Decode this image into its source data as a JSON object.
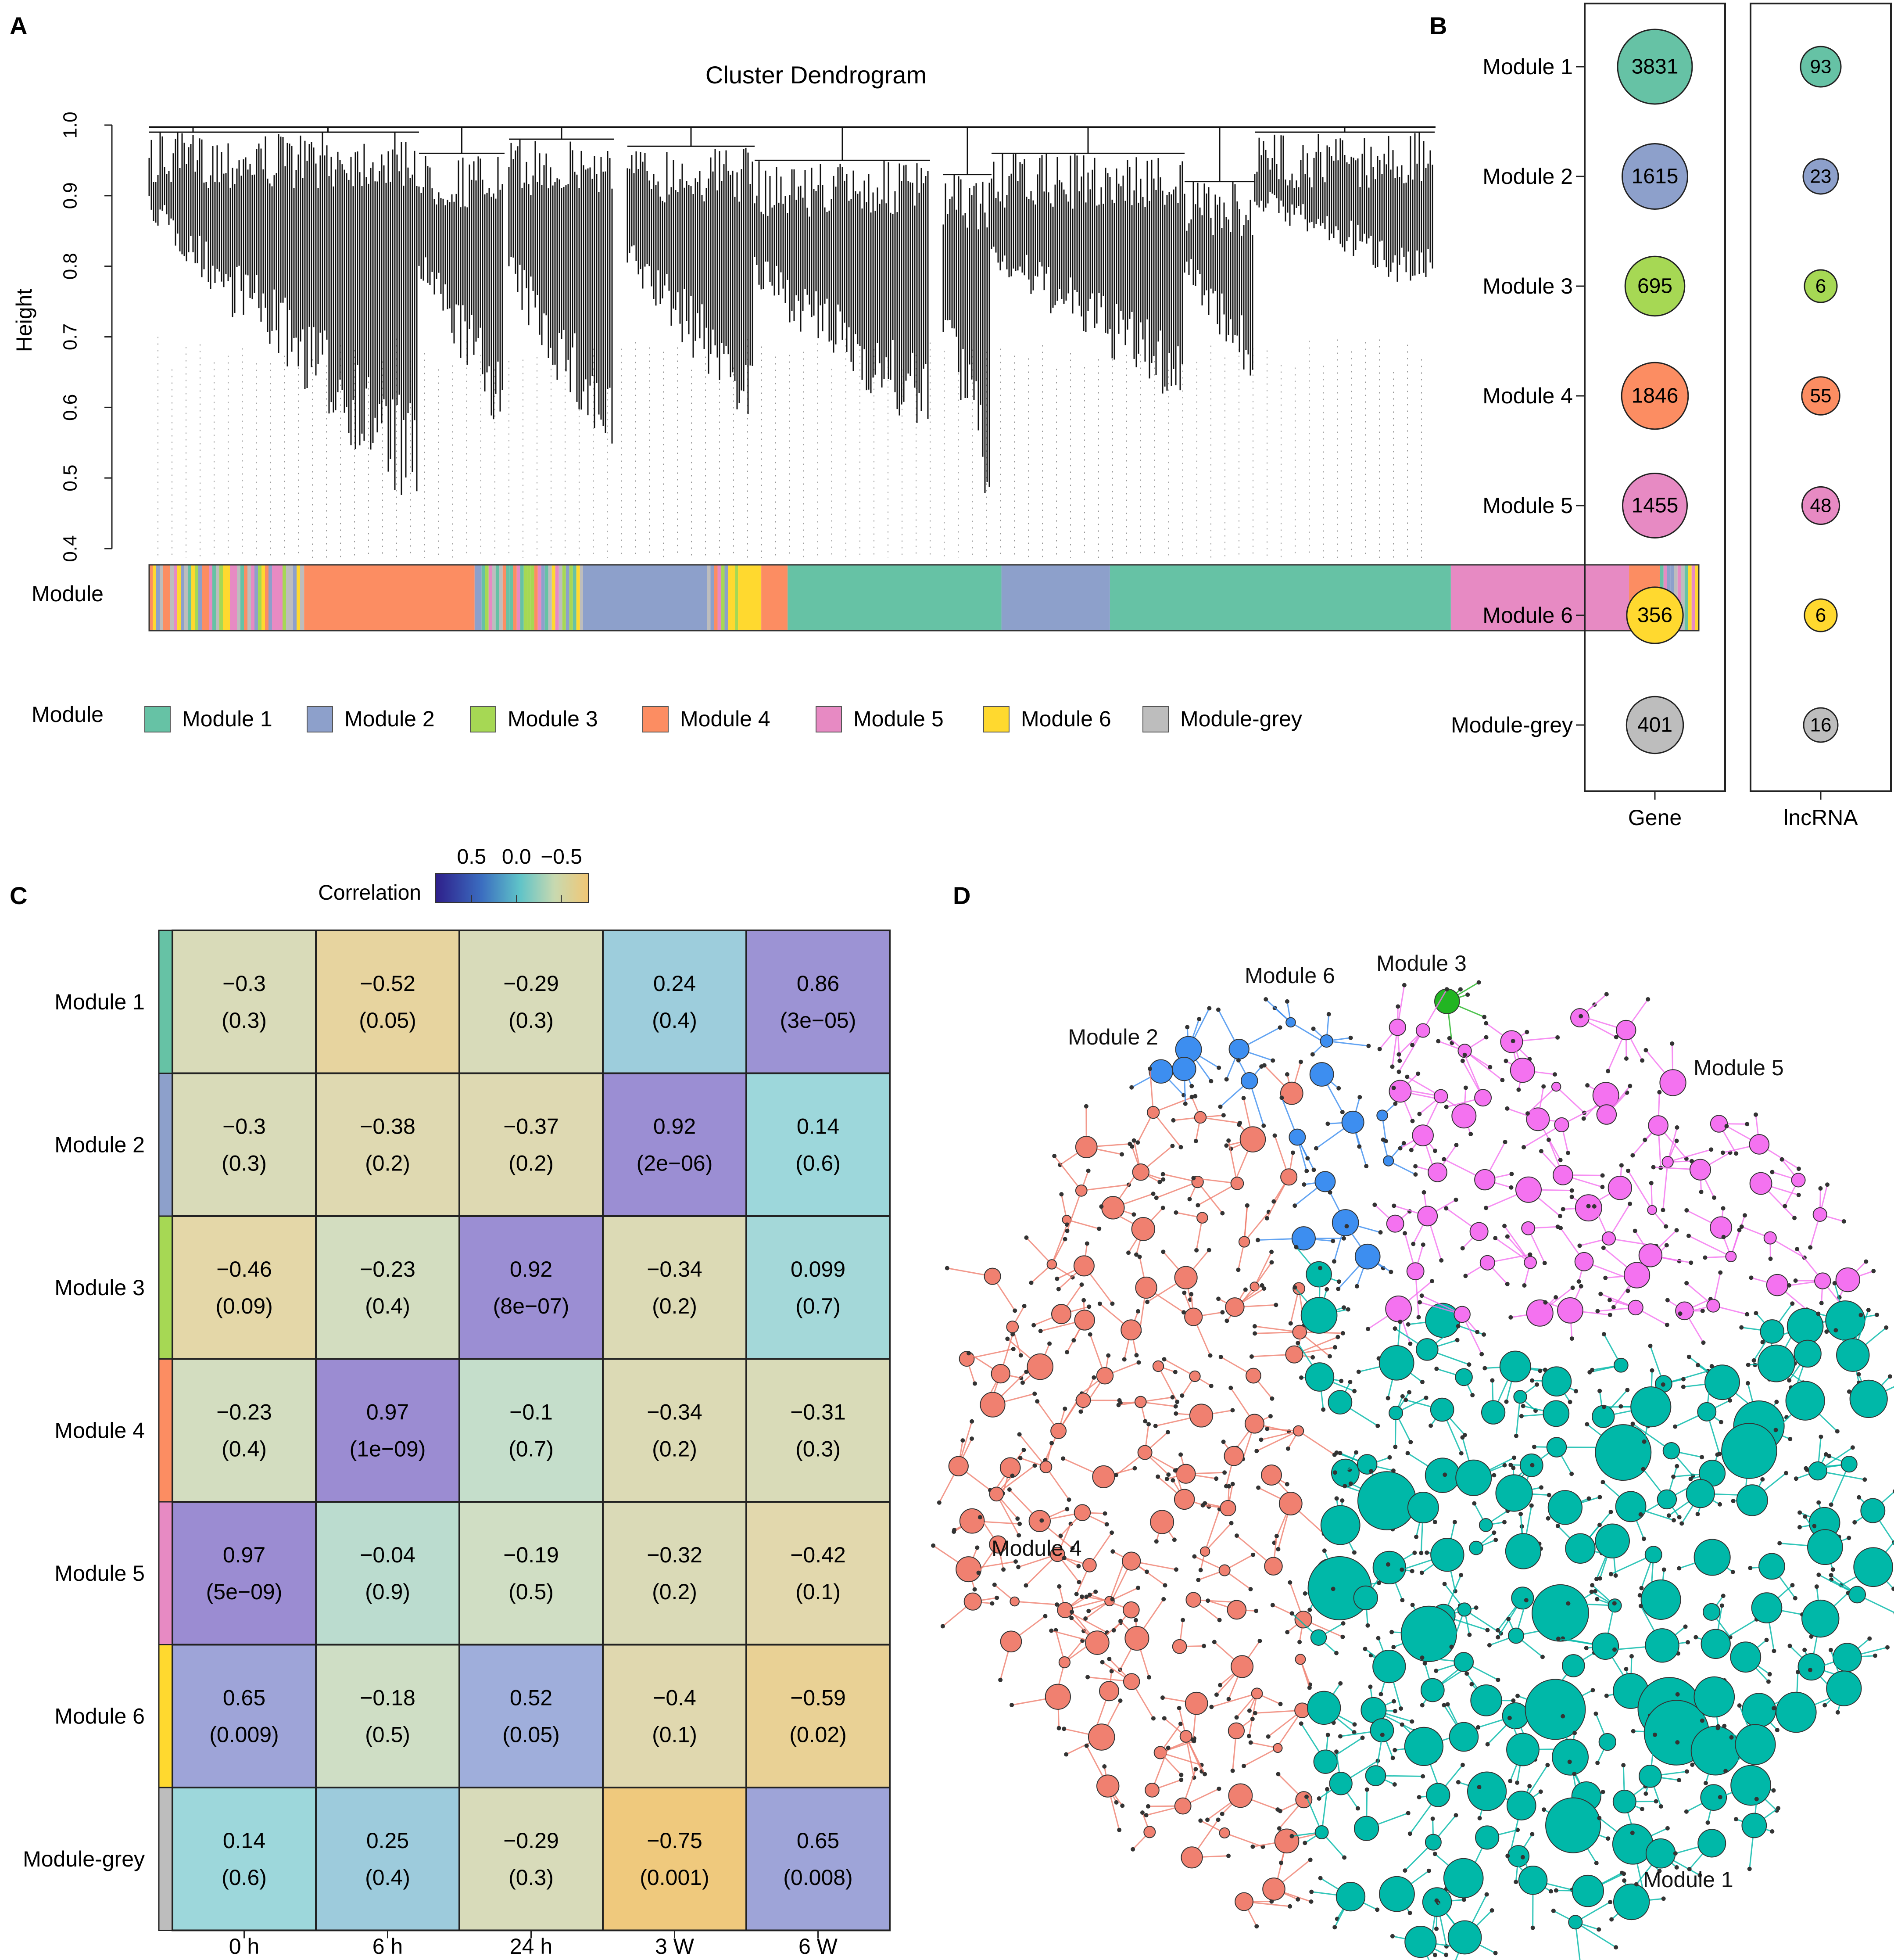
{
  "panel_labels": {
    "a": "A",
    "b": "B",
    "c": "C",
    "d": "D"
  },
  "colors": {
    "m1": "#66c2a5",
    "m2": "#8da0cb",
    "m3": "#a6d854",
    "m4": "#fc8d62",
    "m5": "#e78ac3",
    "m6": "#ffd92f",
    "grey": "#bdbdbd",
    "net_m1": "#00b8a8",
    "net_m2": "#3d8ef0",
    "net_m3": "#22b522",
    "net_m4": "#f08070",
    "net_m5": "#f472f0",
    "net_m6": "#f3e43b"
  },
  "chart_data": [
    {
      "type": "dendrogram",
      "title": "Cluster Dendrogram",
      "ylabel": "Height",
      "ylim": [
        0.4,
        1.0
      ],
      "yticks": [
        "0.4",
        "0.5",
        "0.6",
        "0.7",
        "0.8",
        "0.9",
        "1.0"
      ],
      "module_bar_label": "Module",
      "module_bar": [
        {
          "module": "mixed",
          "start": 0.0,
          "end": 0.1
        },
        {
          "module": "Module 4",
          "start": 0.1,
          "end": 0.21
        },
        {
          "module": "mixed",
          "start": 0.21,
          "end": 0.28
        },
        {
          "module": "Module 2",
          "start": 0.28,
          "end": 0.36
        },
        {
          "module": "mixed",
          "start": 0.36,
          "end": 0.38
        },
        {
          "module": "Module 6",
          "start": 0.38,
          "end": 0.395
        },
        {
          "module": "Module 4",
          "start": 0.395,
          "end": 0.412
        },
        {
          "module": "Module 1",
          "start": 0.412,
          "end": 0.55
        },
        {
          "module": "Module 2",
          "start": 0.55,
          "end": 0.62
        },
        {
          "module": "Module 1",
          "start": 0.62,
          "end": 0.84
        },
        {
          "module": "Module 5",
          "start": 0.84,
          "end": 0.955
        },
        {
          "module": "Module 4",
          "start": 0.955,
          "end": 0.975
        },
        {
          "module": "mixed",
          "start": 0.975,
          "end": 1.0
        }
      ],
      "legend_title": "Module",
      "legend": [
        "Module 1",
        "Module 2",
        "Module 3",
        "Module 4",
        "Module 5",
        "Module 6",
        "Module-grey"
      ]
    },
    {
      "type": "dot-matrix",
      "rows": [
        "Module 1",
        "Module 2",
        "Module 3",
        "Module 4",
        "Module 5",
        "Module 6",
        "Module-grey"
      ],
      "columns": [
        "Gene",
        "lncRNA"
      ],
      "values": {
        "Gene": [
          3831,
          1615,
          695,
          1846,
          1455,
          356,
          401
        ],
        "lncRNA": [
          93,
          23,
          6,
          55,
          48,
          6,
          16
        ]
      }
    },
    {
      "type": "heatmap",
      "title": "Correlation",
      "colorbar_ticks": [
        "0.5",
        "0.0",
        "−0.5"
      ],
      "colorbar_range": [
        0.9,
        -0.8
      ],
      "rows": [
        "Module 1",
        "Module 2",
        "Module 3",
        "Module 4",
        "Module 5",
        "Module 6",
        "Module-grey"
      ],
      "columns": [
        "0 h",
        "6 h",
        "24 h",
        "3 W",
        "6 W"
      ],
      "values": [
        [
          -0.3,
          -0.52,
          -0.29,
          0.24,
          0.86
        ],
        [
          -0.3,
          -0.38,
          -0.37,
          0.92,
          0.14
        ],
        [
          -0.46,
          -0.23,
          0.92,
          -0.34,
          0.099
        ],
        [
          -0.23,
          0.97,
          -0.1,
          -0.34,
          -0.31
        ],
        [
          0.97,
          -0.04,
          -0.19,
          -0.32,
          -0.42
        ],
        [
          0.65,
          -0.18,
          0.52,
          -0.4,
          -0.59
        ],
        [
          0.14,
          0.25,
          -0.29,
          -0.75,
          0.65
        ]
      ],
      "cell_labels": [
        [
          [
            "−0.3",
            "(0.3)"
          ],
          [
            "−0.52",
            "(0.05)"
          ],
          [
            "−0.29",
            "(0.3)"
          ],
          [
            "0.24",
            "(0.4)"
          ],
          [
            "0.86",
            "(3e−05)"
          ]
        ],
        [
          [
            "−0.3",
            "(0.3)"
          ],
          [
            "−0.38",
            "(0.2)"
          ],
          [
            "−0.37",
            "(0.2)"
          ],
          [
            "0.92",
            "(2e−06)"
          ],
          [
            "0.14",
            "(0.6)"
          ]
        ],
        [
          [
            "−0.46",
            "(0.09)"
          ],
          [
            "−0.23",
            "(0.4)"
          ],
          [
            "0.92",
            "(8e−07)"
          ],
          [
            "−0.34",
            "(0.2)"
          ],
          [
            "0.099",
            "(0.7)"
          ]
        ],
        [
          [
            "−0.23",
            "(0.4)"
          ],
          [
            "0.97",
            "(1e−09)"
          ],
          [
            "−0.1",
            "(0.7)"
          ],
          [
            "−0.34",
            "(0.2)"
          ],
          [
            "−0.31",
            "(0.3)"
          ]
        ],
        [
          [
            "0.97",
            "(5e−09)"
          ],
          [
            "−0.04",
            "(0.9)"
          ],
          [
            "−0.19",
            "(0.5)"
          ],
          [
            "−0.32",
            "(0.2)"
          ],
          [
            "−0.42",
            "(0.1)"
          ]
        ],
        [
          [
            "0.65",
            "(0.009)"
          ],
          [
            "−0.18",
            "(0.5)"
          ],
          [
            "0.52",
            "(0.05)"
          ],
          [
            "−0.4",
            "(0.1)"
          ],
          [
            "−0.59",
            "(0.02)"
          ]
        ],
        [
          [
            "0.14",
            "(0.6)"
          ],
          [
            "0.25",
            "(0.4)"
          ],
          [
            "−0.29",
            "(0.3)"
          ],
          [
            "−0.75",
            "(0.001)"
          ],
          [
            "0.65",
            "(0.008)"
          ]
        ]
      ]
    },
    {
      "type": "network",
      "labels": [
        "Module 1",
        "Module 2",
        "Module 3",
        "Module 4",
        "Module 5",
        "Module 6"
      ]
    }
  ]
}
